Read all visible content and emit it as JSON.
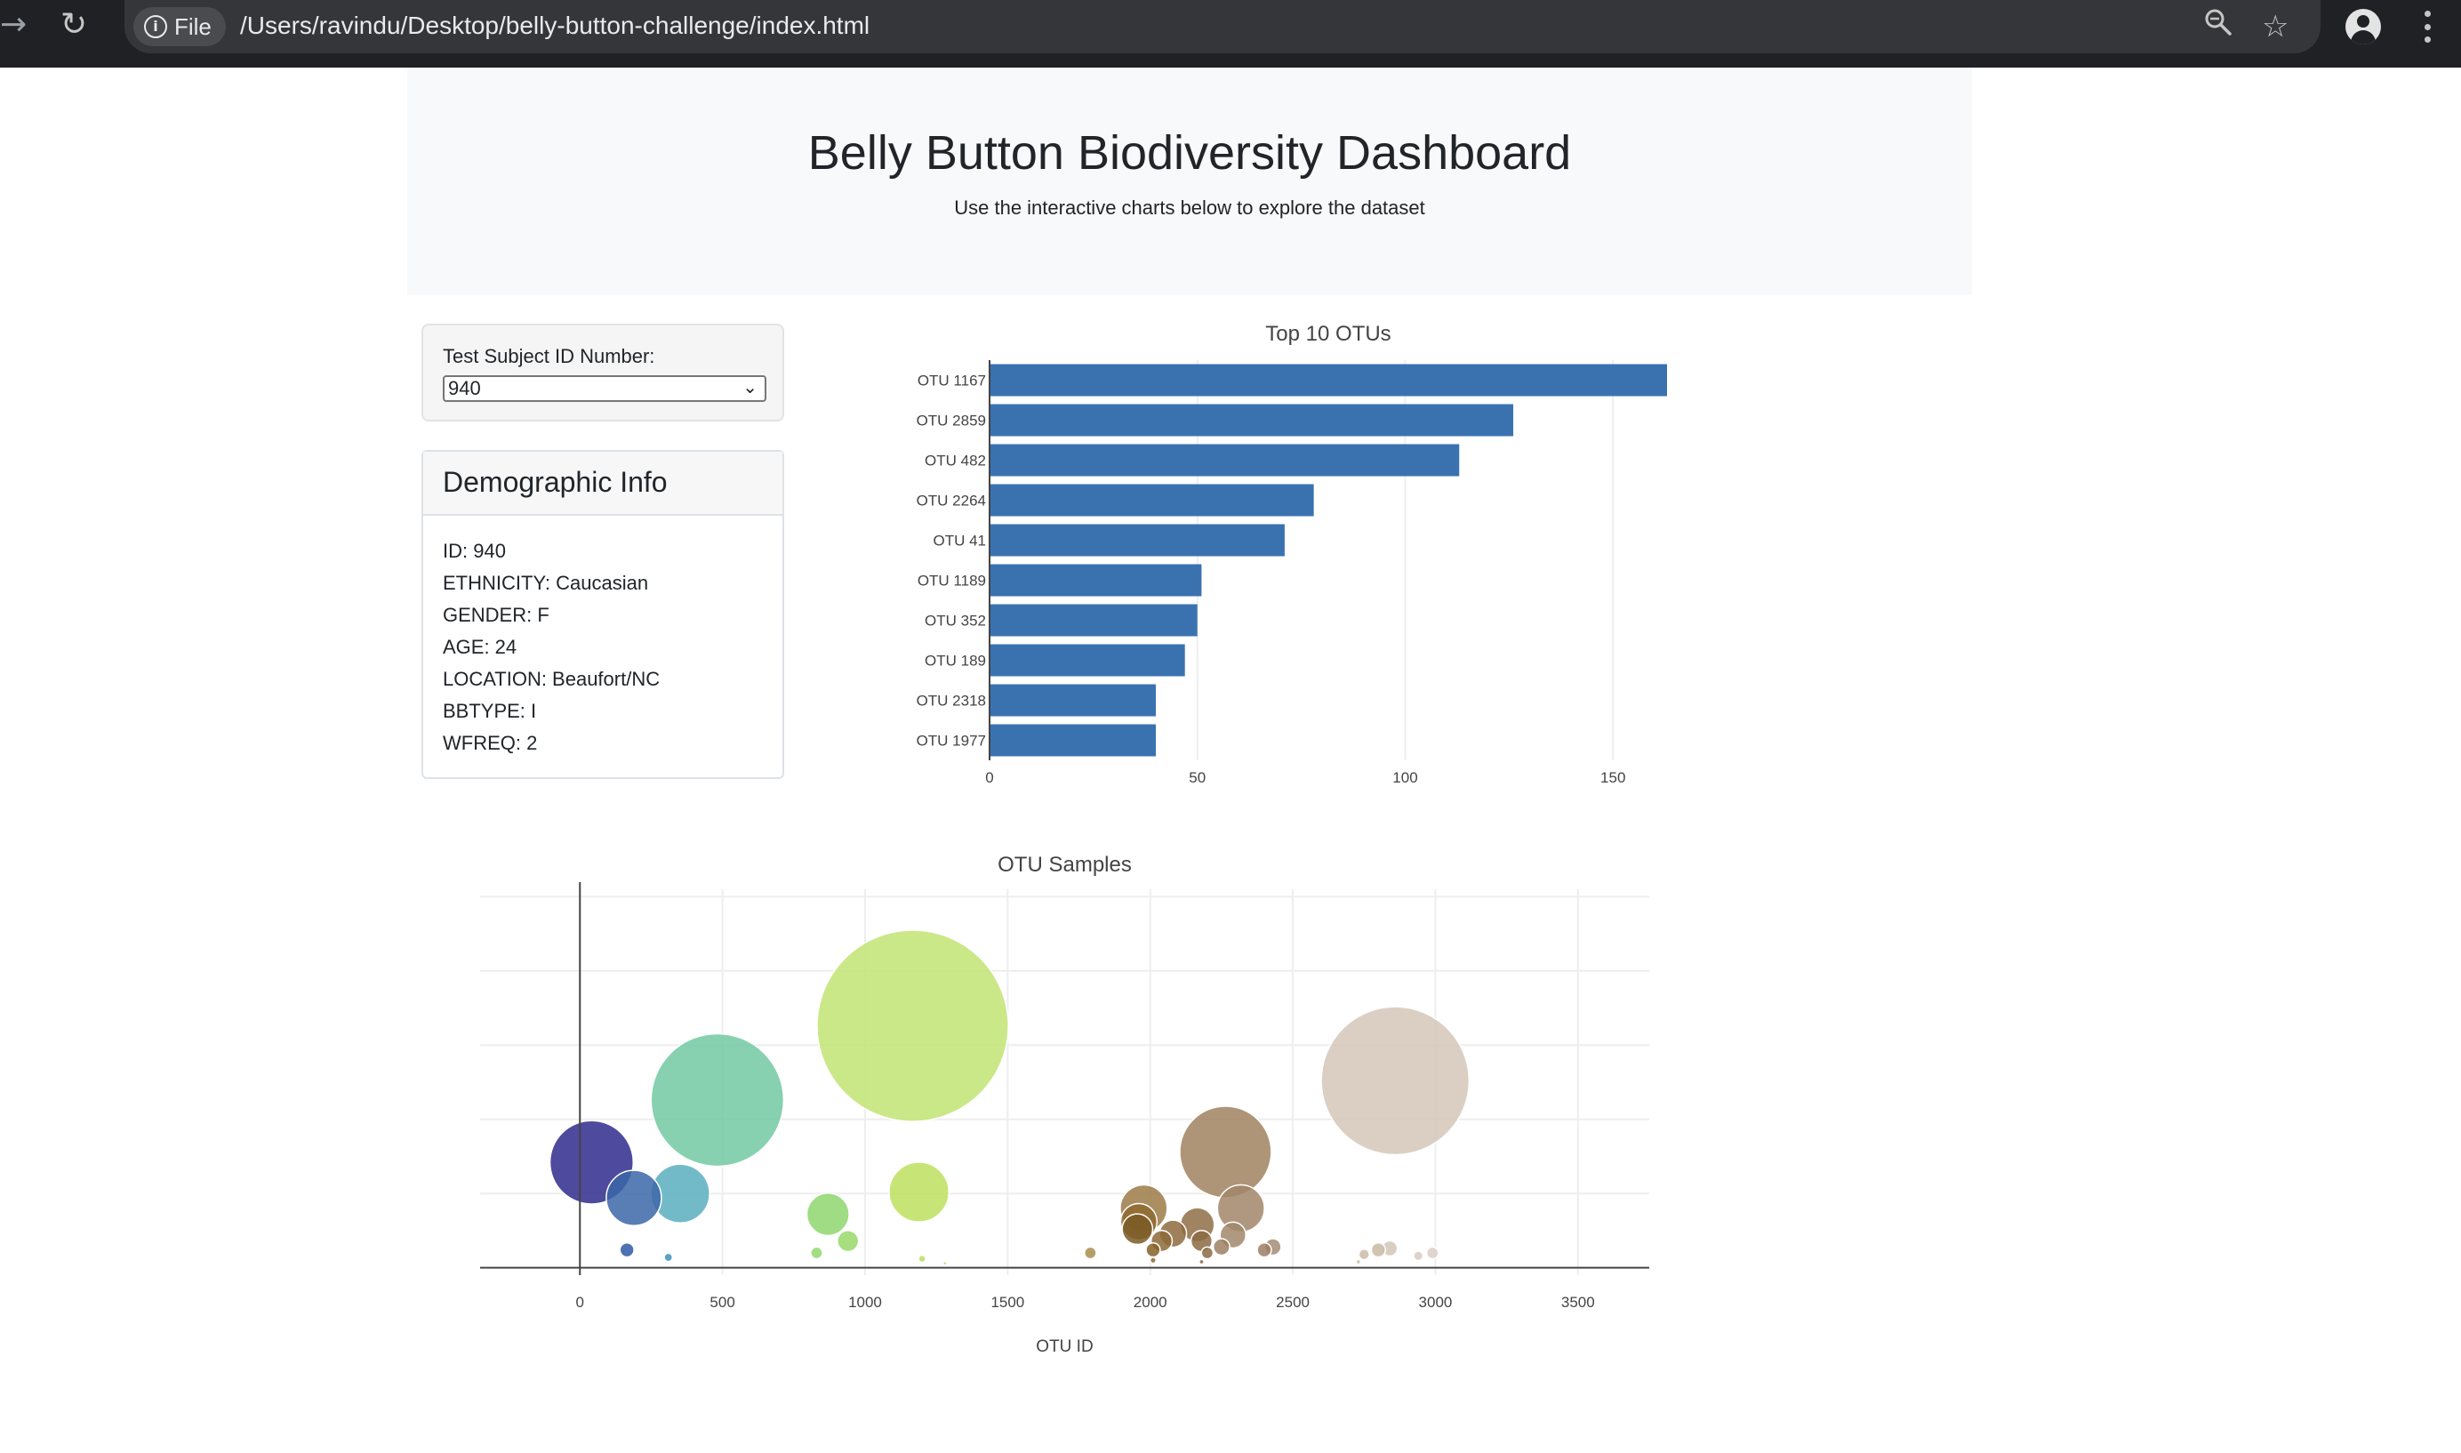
{
  "browser": {
    "file_label": "File",
    "url": "/Users/ravindu/Desktop/belly-button-challenge/index.html"
  },
  "header": {
    "title": "Belly Button Biodiversity Dashboard",
    "subtitle": "Use the interactive charts below to explore the dataset"
  },
  "selector": {
    "label": "Test Subject ID Number:",
    "selected": "940"
  },
  "demographics": {
    "title": "Demographic Info",
    "rows": [
      "ID: 940",
      "ETHNICITY: Caucasian",
      "GENDER: F",
      "AGE: 24",
      "LOCATION: Beaufort/NC",
      "BBTYPE: I",
      "WFREQ: 2"
    ]
  },
  "chart_data": [
    {
      "type": "bar",
      "orientation": "horizontal",
      "title": "Top 10 OTUs",
      "categories": [
        "OTU 1167",
        "OTU 2859",
        "OTU 482",
        "OTU 2264",
        "OTU 41",
        "OTU 1189",
        "OTU 352",
        "OTU 189",
        "OTU 2318",
        "OTU 1977"
      ],
      "values": [
        163,
        126,
        113,
        78,
        71,
        51,
        50,
        47,
        40,
        40
      ],
      "xlim": [
        0,
        163
      ],
      "xticks": [
        0,
        50,
        100,
        150
      ],
      "color": "#3a72b0",
      "grid": true
    },
    {
      "type": "scatter",
      "style": "bubble",
      "title": "OTU Samples",
      "xlabel": "OTU ID",
      "ylabel": "",
      "xlim": [
        -350,
        3750
      ],
      "ylim": [
        -5,
        255
      ],
      "xticks": [
        0,
        500,
        1000,
        1500,
        2000,
        2500,
        3000,
        3500
      ],
      "yticks": [
        0,
        50,
        100,
        150,
        200,
        250
      ],
      "grid": true,
      "points": [
        {
          "x": 41,
          "y": 71,
          "c": "#2f2a8c"
        },
        {
          "x": 189,
          "y": 47,
          "c": "#3c66a8"
        },
        {
          "x": 352,
          "y": 50,
          "c": "#5aaec0"
        },
        {
          "x": 482,
          "y": 113,
          "c": "#72c9a2"
        },
        {
          "x": 1167,
          "y": 163,
          "c": "#c2e474"
        },
        {
          "x": 1189,
          "y": 51,
          "c": "#bce15e"
        },
        {
          "x": 870,
          "y": 36,
          "c": "#8ed66e"
        },
        {
          "x": 940,
          "y": 18,
          "c": "#96d86a"
        },
        {
          "x": 165,
          "y": 12,
          "c": "#2f58a6"
        },
        {
          "x": 310,
          "y": 7,
          "c": "#3f8fbd"
        },
        {
          "x": 830,
          "y": 10,
          "c": "#92d86d"
        },
        {
          "x": 1200,
          "y": 6,
          "c": "#b7df63"
        },
        {
          "x": 1280,
          "y": 3,
          "c": "#b5de62"
        },
        {
          "x": 1790,
          "y": 10,
          "c": "#a98d4c"
        },
        {
          "x": 1977,
          "y": 40,
          "c": "#9c7a45"
        },
        {
          "x": 1960,
          "y": 31,
          "c": "#8e6a30"
        },
        {
          "x": 1955,
          "y": 26,
          "c": "#7a5a24"
        },
        {
          "x": 2010,
          "y": 12,
          "c": "#846127"
        },
        {
          "x": 2040,
          "y": 18,
          "c": "#8d6a38"
        },
        {
          "x": 2080,
          "y": 23,
          "c": "#8d6a3e"
        },
        {
          "x": 2165,
          "y": 29,
          "c": "#8f6d45"
        },
        {
          "x": 2180,
          "y": 18,
          "c": "#8c6a42"
        },
        {
          "x": 2200,
          "y": 10,
          "c": "#8b6a43"
        },
        {
          "x": 2264,
          "y": 78,
          "c": "#a0825f"
        },
        {
          "x": 2318,
          "y": 40,
          "c": "#a2866a"
        },
        {
          "x": 2290,
          "y": 22,
          "c": "#a1876a"
        },
        {
          "x": 2250,
          "y": 14,
          "c": "#9c7f62"
        },
        {
          "x": 2400,
          "y": 12,
          "c": "#9c7e66"
        },
        {
          "x": 2430,
          "y": 14,
          "c": "#a48c74"
        },
        {
          "x": 2859,
          "y": 126,
          "c": "#d5c7b8"
        },
        {
          "x": 2750,
          "y": 9,
          "c": "#cbbaa7"
        },
        {
          "x": 2800,
          "y": 12,
          "c": "#c9b8a5"
        },
        {
          "x": 2840,
          "y": 13,
          "c": "#d3c5b6"
        },
        {
          "x": 2940,
          "y": 8,
          "c": "#d7ccc0"
        },
        {
          "x": 2990,
          "y": 10,
          "c": "#d9cfc4"
        },
        {
          "x": 2010,
          "y": 5,
          "c": "#8a6a3a"
        },
        {
          "x": 2180,
          "y": 4,
          "c": "#8a6b44"
        },
        {
          "x": 2730,
          "y": 4,
          "c": "#cfbfae"
        }
      ]
    }
  ]
}
